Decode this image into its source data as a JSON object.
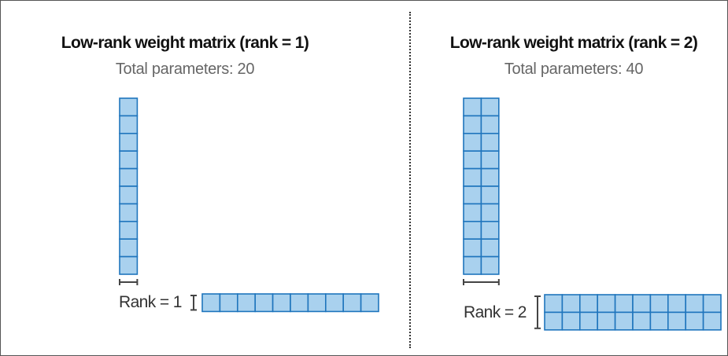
{
  "panels": [
    {
      "title": "Low-rank weight matrix (rank = 1)",
      "subtitle": "Total parameters: 20",
      "rank_label": "Rank = 1",
      "rank": 1,
      "vertical_matrix": {
        "rows": 10,
        "cols": 1
      },
      "horizontal_matrix": {
        "rows": 1,
        "cols": 10
      }
    },
    {
      "title": "Low-rank weight matrix (rank = 2)",
      "subtitle": "Total parameters: 40",
      "rank_label": "Rank = 2",
      "rank": 2,
      "vertical_matrix": {
        "rows": 10,
        "cols": 2
      },
      "horizontal_matrix": {
        "rows": 2,
        "cols": 10
      }
    }
  ],
  "colors": {
    "cell_fill": "#a9d1ee",
    "cell_border": "#1f75bd",
    "bracket": "#444444"
  }
}
